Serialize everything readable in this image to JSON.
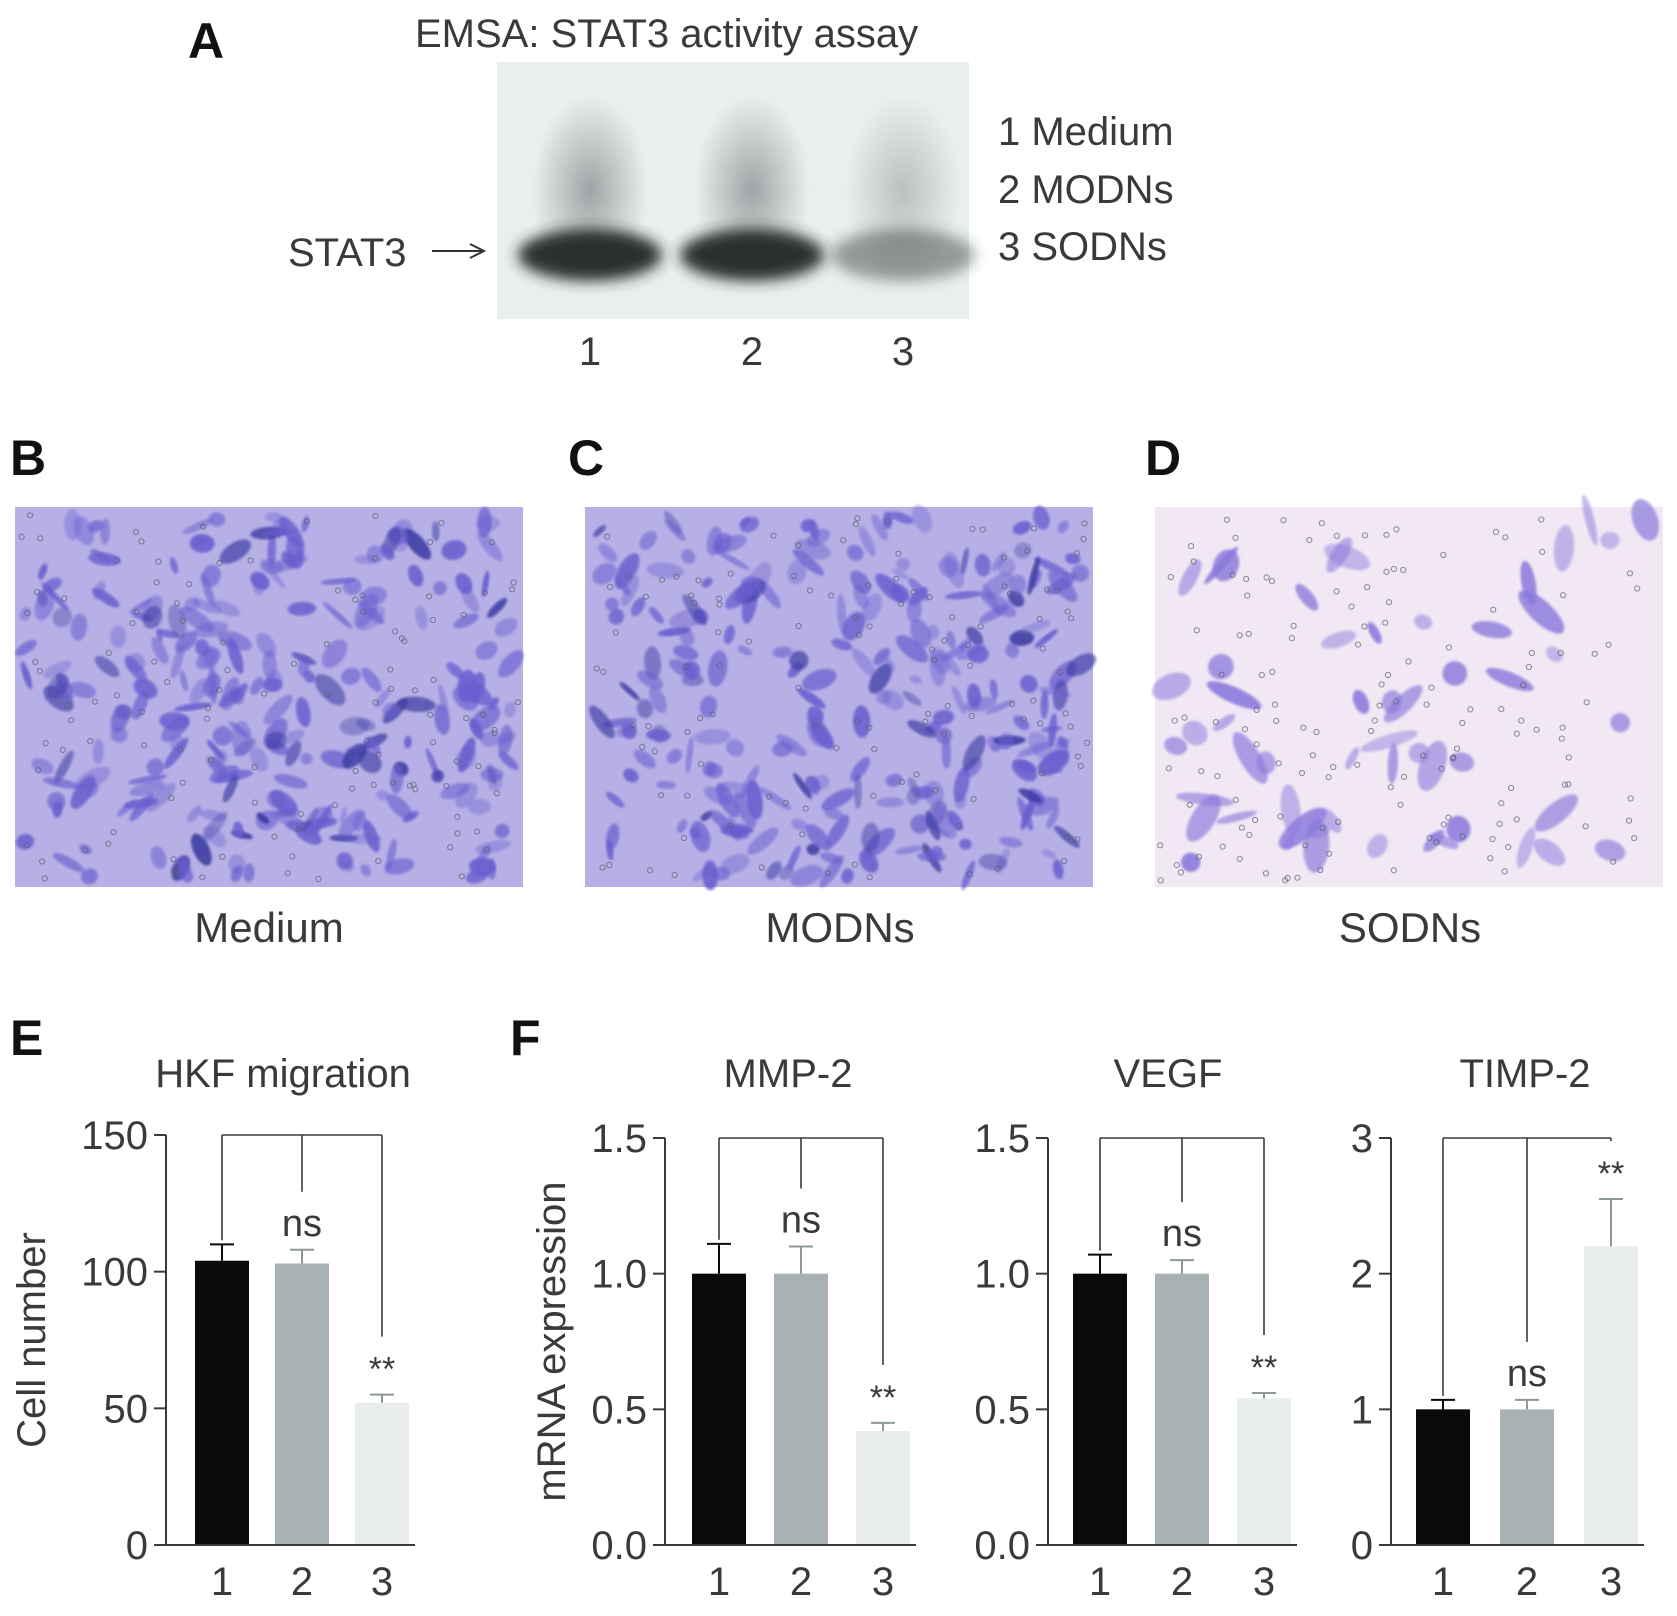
{
  "panel_labels": {
    "A": "A",
    "B": "B",
    "C": "C",
    "D": "D",
    "E": "E",
    "F": "F"
  },
  "emsa": {
    "title": "EMSA: STAT3 activity assay",
    "arrow_label": "STAT3",
    "legend": [
      "1 Medium",
      "2 MODNs",
      "3 SODNs"
    ],
    "lanes": [
      "1",
      "2",
      "3"
    ],
    "band_intensity": [
      1.0,
      1.0,
      0.3
    ]
  },
  "micrographs": {
    "captions": [
      "Medium",
      "MODNs",
      "SODNs"
    ],
    "cell_density": [
      "high",
      "high",
      "low"
    ]
  },
  "colors": {
    "group1": "#0a0a0a",
    "group2": "#a8b2b4",
    "group3": "#e8ecea",
    "axis": "#3a3a3a",
    "stain": "#6e5ad0"
  },
  "chart_data": [
    {
      "type": "bar",
      "panel": "E",
      "title": "HKF migration",
      "ylabel": "Cell number",
      "categories": [
        "1",
        "2",
        "3"
      ],
      "values": [
        104,
        103,
        52
      ],
      "errors": [
        6,
        5,
        3
      ],
      "ylim": [
        0,
        150
      ],
      "yticks": [
        "0",
        "50",
        "100",
        "150"
      ],
      "significance": [
        "",
        "ns",
        "**"
      ]
    },
    {
      "type": "bar",
      "panel": "F",
      "title": "MMP-2",
      "ylabel": "mRNA expression",
      "categories": [
        "1",
        "2",
        "3"
      ],
      "values": [
        1.0,
        1.0,
        0.42
      ],
      "errors": [
        0.11,
        0.1,
        0.03
      ],
      "ylim": [
        0,
        1.5
      ],
      "yticks": [
        "0.0",
        "0.5",
        "1.0",
        "1.5"
      ],
      "significance": [
        "",
        "ns",
        "**"
      ]
    },
    {
      "type": "bar",
      "panel": "F",
      "title": "VEGF",
      "ylabel": "",
      "categories": [
        "1",
        "2",
        "3"
      ],
      "values": [
        1.0,
        1.0,
        0.54
      ],
      "errors": [
        0.07,
        0.05,
        0.02
      ],
      "ylim": [
        0,
        1.5
      ],
      "yticks": [
        "0.0",
        "0.5",
        "1.0",
        "1.5"
      ],
      "significance": [
        "",
        "ns",
        "**"
      ]
    },
    {
      "type": "bar",
      "panel": "F",
      "title": "TIMP-2",
      "ylabel": "",
      "categories": [
        "1",
        "2",
        "3"
      ],
      "values": [
        1.0,
        1.0,
        2.2
      ],
      "errors": [
        0.07,
        0.07,
        0.35
      ],
      "ylim": [
        0,
        3
      ],
      "yticks": [
        "0",
        "1",
        "2",
        "3"
      ],
      "significance": [
        "",
        "ns",
        "**"
      ]
    }
  ]
}
